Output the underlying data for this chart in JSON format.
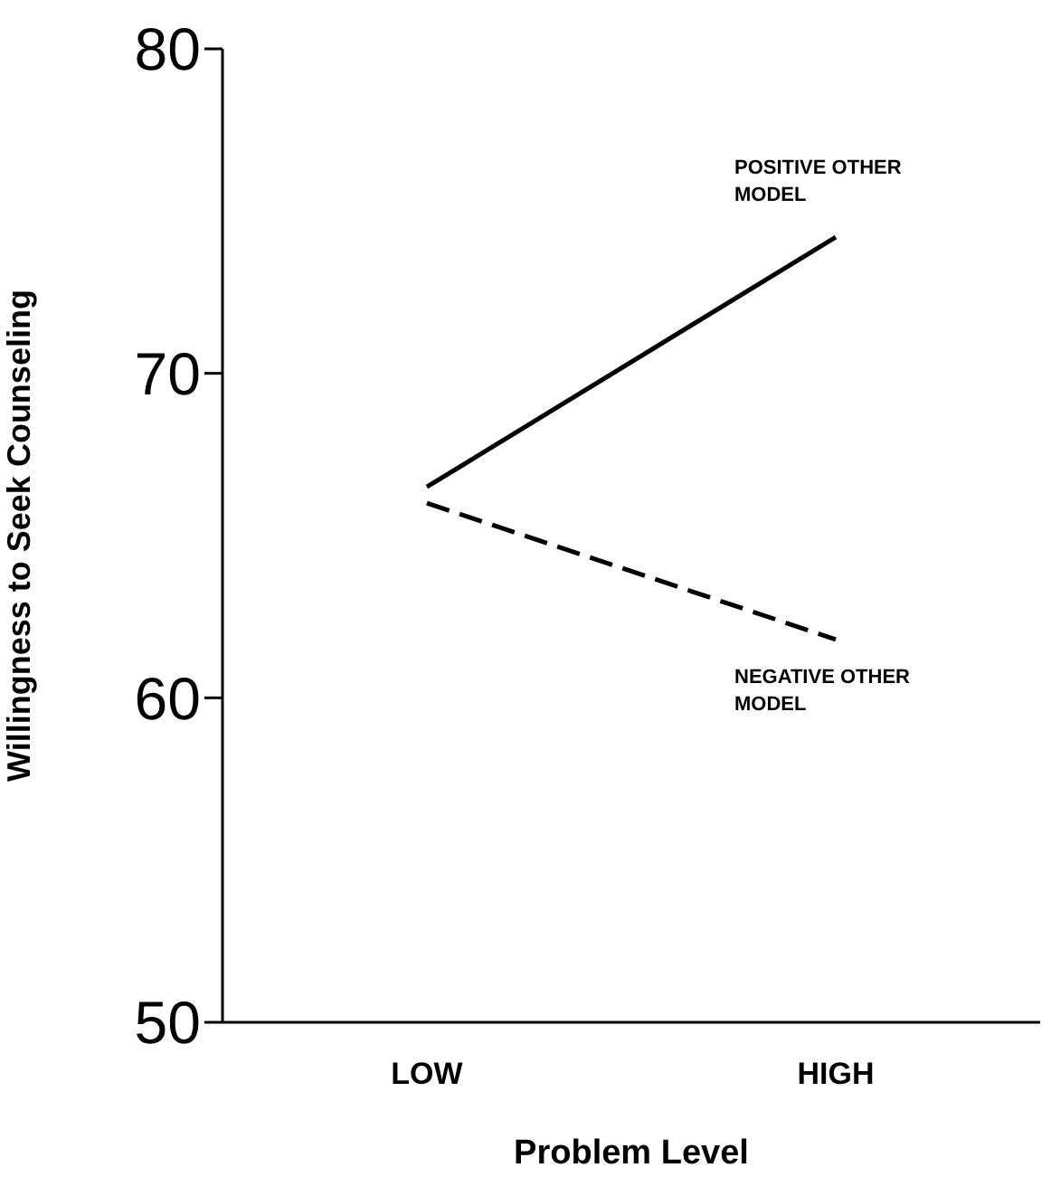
{
  "chart_data": {
    "type": "line",
    "xlabel": "Problem Level",
    "ylabel": "Willingness to Seek Counseling",
    "categories": [
      "LOW",
      "HIGH"
    ],
    "ylim": [
      50,
      80
    ],
    "yticks": [
      50,
      60,
      70,
      80
    ],
    "grid": false,
    "legend": false,
    "marker": "none",
    "series": [
      {
        "name": "POSITIVE OTHER MODEL",
        "color": "#000000",
        "line_style": "solid",
        "values": [
          66.5,
          74.2
        ]
      },
      {
        "name": "NEGATIVE OTHER MODEL",
        "color": "#000000",
        "line_style": "dashed",
        "values": [
          66.0,
          61.8
        ]
      }
    ]
  }
}
